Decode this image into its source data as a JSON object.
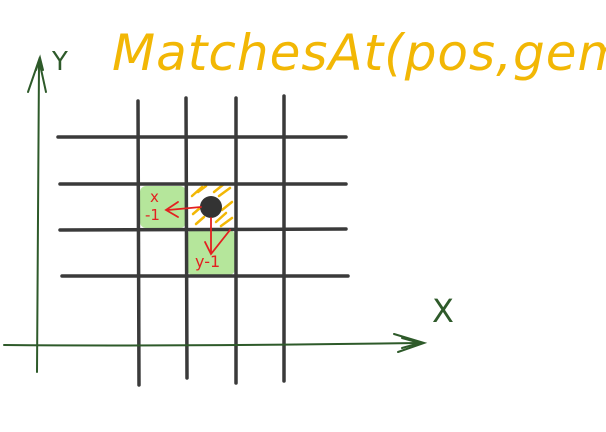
{
  "title": "MatchesAt(pos,gem)",
  "axes": {
    "x_label": "X",
    "y_label": "Y"
  },
  "annotations": {
    "left_neighbor": [
      "x",
      "-1"
    ],
    "down_neighbor": "y-1"
  },
  "colors": {
    "title": "#f2b705",
    "axis": "#2e5a2a",
    "grid": "#3a3a3a",
    "highlight": "#a8e28a",
    "hatch": "#f2b705",
    "arrow": "#e32020",
    "gem": "#333333"
  }
}
